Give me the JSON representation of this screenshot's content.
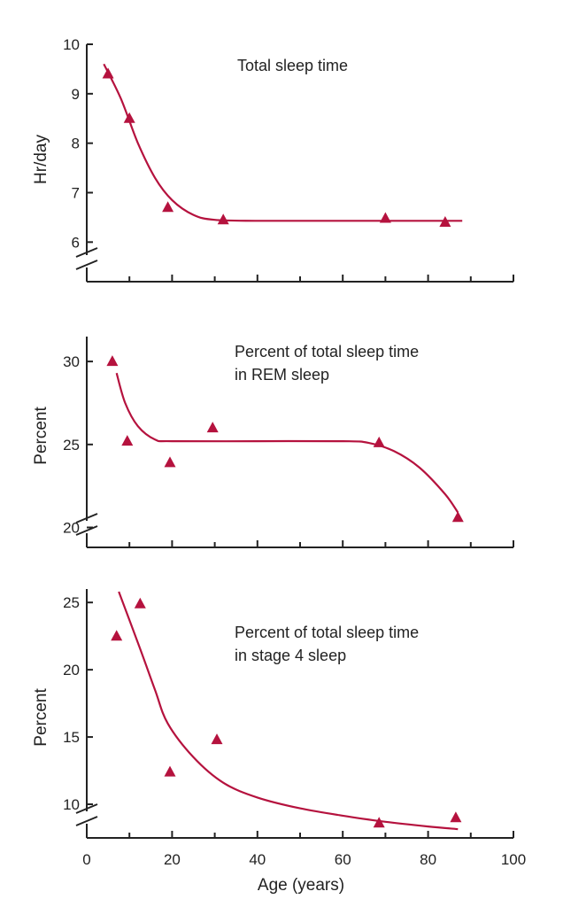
{
  "chart_data": [
    {
      "type": "scatter",
      "title_lines": [
        "Total sleep time"
      ],
      "ylabel": "Hr/day",
      "xlabel": "",
      "xlim": [
        0,
        100
      ],
      "ylim": [
        5.2,
        10
      ],
      "y_ticks": [
        6,
        7,
        8,
        9,
        10
      ],
      "y_break": true,
      "grid": false,
      "color": "#b5123e",
      "points": [
        [
          5,
          9.4
        ],
        [
          10,
          8.5
        ],
        [
          19,
          6.7
        ],
        [
          32,
          6.45
        ],
        [
          70,
          6.48
        ],
        [
          84,
          6.4
        ]
      ],
      "trend": [
        [
          4,
          9.6
        ],
        [
          8,
          8.9
        ],
        [
          12,
          8.0
        ],
        [
          16,
          7.3
        ],
        [
          20,
          6.85
        ],
        [
          25,
          6.55
        ],
        [
          30,
          6.45
        ],
        [
          40,
          6.43
        ],
        [
          60,
          6.43
        ],
        [
          88,
          6.43
        ]
      ]
    },
    {
      "type": "scatter",
      "title_lines": [
        "Percent of total sleep time",
        "in REM sleep"
      ],
      "ylabel": "Percent",
      "xlabel": "",
      "xlim": [
        0,
        100
      ],
      "ylim": [
        18.8,
        31.5
      ],
      "y_ticks": [
        20,
        25,
        30
      ],
      "y_break": true,
      "grid": false,
      "color": "#b5123e",
      "points": [
        [
          6,
          30
        ],
        [
          9.5,
          25.2
        ],
        [
          19.5,
          23.9
        ],
        [
          29.5,
          26
        ],
        [
          68.5,
          25.1
        ],
        [
          87,
          20.6
        ]
      ],
      "trend": [
        [
          7,
          29.3
        ],
        [
          9,
          27.5
        ],
        [
          12,
          26.1
        ],
        [
          16,
          25.3
        ],
        [
          20,
          25.2
        ],
        [
          40,
          25.2
        ],
        [
          60,
          25.2
        ],
        [
          66,
          25.1
        ],
        [
          72,
          24.6
        ],
        [
          78,
          23.6
        ],
        [
          84,
          22.0
        ],
        [
          87,
          20.9
        ]
      ]
    },
    {
      "type": "scatter",
      "title_lines": [
        "Percent of total sleep time",
        "in stage 4 sleep"
      ],
      "ylabel": "Percent",
      "xlabel": "Age (years)",
      "xlim": [
        0,
        100
      ],
      "x_ticks": [
        0,
        20,
        40,
        60,
        80,
        100
      ],
      "ylim": [
        7.5,
        26
      ],
      "y_ticks": [
        10,
        15,
        20,
        25
      ],
      "y_break": true,
      "grid": false,
      "color": "#b5123e",
      "points": [
        [
          7,
          22.5
        ],
        [
          12.5,
          24.9
        ],
        [
          19.5,
          12.4
        ],
        [
          30.5,
          14.8
        ],
        [
          68.5,
          8.6
        ],
        [
          86.5,
          9
        ]
      ],
      "trend": [
        [
          7.5,
          25.8
        ],
        [
          12,
          22.0
        ],
        [
          16,
          18.5
        ],
        [
          19,
          16.0
        ],
        [
          25,
          13.5
        ],
        [
          32,
          11.6
        ],
        [
          40,
          10.5
        ],
        [
          50,
          9.7
        ],
        [
          60,
          9.15
        ],
        [
          70,
          8.7
        ],
        [
          80,
          8.35
        ],
        [
          87,
          8.15
        ]
      ]
    }
  ]
}
